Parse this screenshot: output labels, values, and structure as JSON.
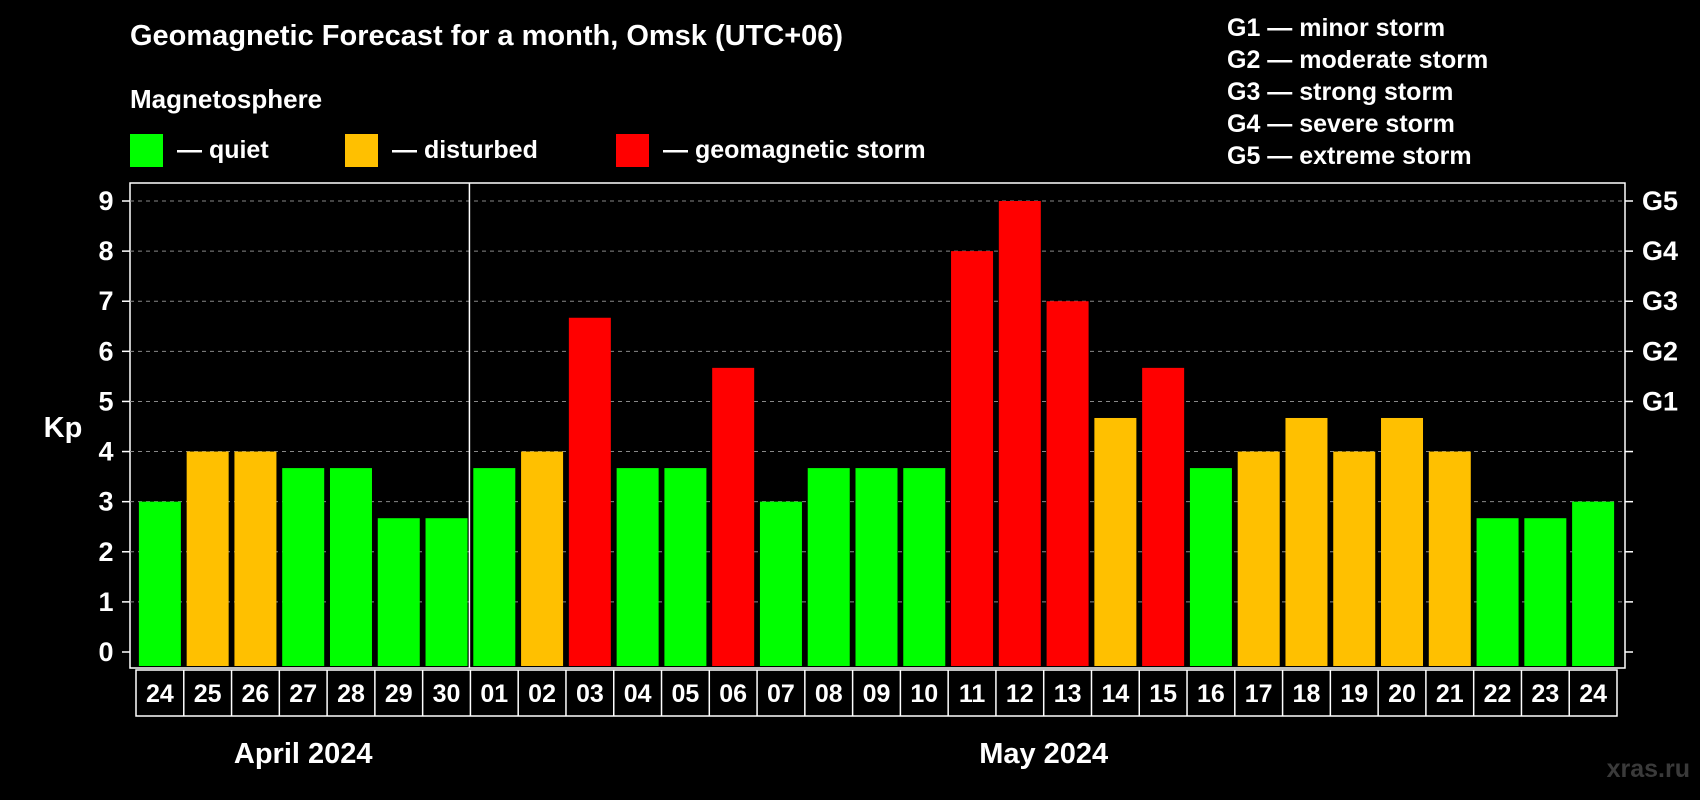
{
  "header": {
    "title": "Geomagnetic Forecast for a month, Omsk (UTC+06)",
    "subtitle": "Magnetosphere"
  },
  "legend": {
    "items": [
      {
        "label": "— quiet",
        "color": "#00ff00"
      },
      {
        "label": "— disturbed",
        "color": "#ffc000"
      },
      {
        "label": "— geomagnetic storm",
        "color": "#ff0000"
      }
    ]
  },
  "storm_legend": [
    "G1 — minor storm",
    "G2 — moderate storm",
    "G3 — strong storm",
    "G4 — severe storm",
    "G5 — extreme storm"
  ],
  "watermark": "xras.ru",
  "chart_data": {
    "type": "bar",
    "ylabel": "Kp",
    "ylim": [
      0,
      9
    ],
    "grid": true,
    "yticks": [
      "0",
      "1",
      "2",
      "3",
      "4",
      "5",
      "6",
      "7",
      "8",
      "9"
    ],
    "right_axis": [
      {
        "level": 5,
        "label": "G1"
      },
      {
        "level": 6,
        "label": "G2"
      },
      {
        "level": 7,
        "label": "G3"
      },
      {
        "level": 8,
        "label": "G4"
      },
      {
        "level": 9,
        "label": "G5"
      }
    ],
    "categories": [
      "24",
      "25",
      "26",
      "27",
      "28",
      "29",
      "30",
      "01",
      "02",
      "03",
      "04",
      "05",
      "06",
      "07",
      "08",
      "09",
      "10",
      "11",
      "12",
      "13",
      "14",
      "15",
      "16",
      "17",
      "18",
      "19",
      "20",
      "21",
      "22",
      "23",
      "24"
    ],
    "values": [
      3,
      4,
      4,
      3.67,
      3.67,
      2.67,
      2.67,
      3.67,
      4,
      6.67,
      3.67,
      3.67,
      5.67,
      3,
      3.67,
      3.67,
      3.67,
      8,
      9,
      7,
      4.67,
      5.67,
      3.67,
      4,
      4.67,
      4,
      4.67,
      4,
      2.67,
      2.67,
      3
    ],
    "colors": [
      "#00ff00",
      "#ffc000",
      "#ffc000",
      "#00ff00",
      "#00ff00",
      "#00ff00",
      "#00ff00",
      "#00ff00",
      "#ffc000",
      "#ff0000",
      "#00ff00",
      "#00ff00",
      "#ff0000",
      "#00ff00",
      "#00ff00",
      "#00ff00",
      "#00ff00",
      "#ff0000",
      "#ff0000",
      "#ff0000",
      "#ffc000",
      "#ff0000",
      "#00ff00",
      "#ffc000",
      "#ffc000",
      "#ffc000",
      "#ffc000",
      "#ffc000",
      "#00ff00",
      "#00ff00",
      "#00ff00"
    ],
    "months": [
      {
        "label": "April 2024",
        "from": 0,
        "to": 6
      },
      {
        "label": "May 2024",
        "from": 7,
        "to": 30
      }
    ]
  }
}
